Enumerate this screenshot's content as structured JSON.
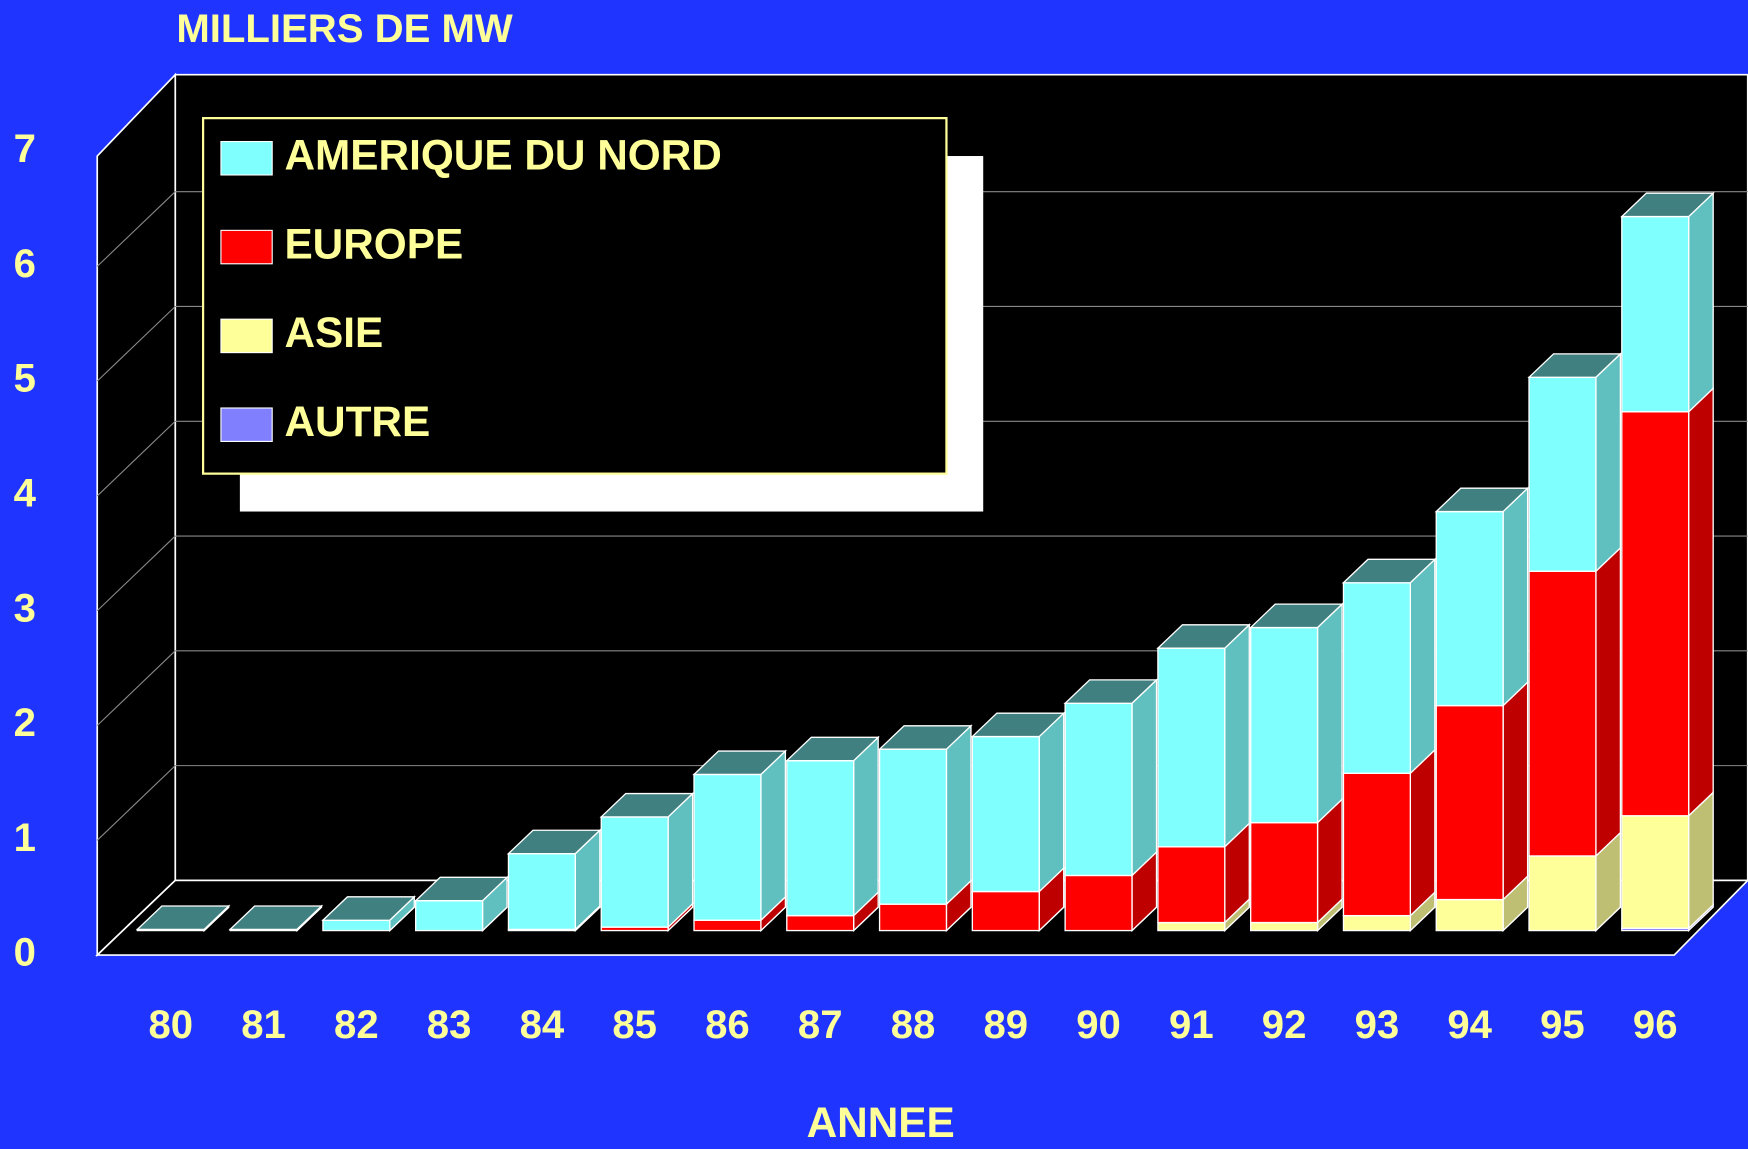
{
  "chart_data": {
    "type": "bar",
    "stacked": true,
    "three_d": true,
    "title": "MILLIERS DE MW",
    "x_label": "ANNEE",
    "categories": [
      "80",
      "81",
      "82",
      "83",
      "84",
      "85",
      "86",
      "87",
      "88",
      "89",
      "90",
      "91",
      "92",
      "93",
      "94",
      "95",
      "96"
    ],
    "series": [
      {
        "name": "AUTRE",
        "color": "#8080ff",
        "values": [
          0,
          0,
          0,
          0,
          0,
          0,
          0,
          0,
          0,
          0,
          0,
          0,
          0,
          0,
          0,
          0,
          0.02
        ]
      },
      {
        "name": "ASIE",
        "color": "#ffff99",
        "values": [
          0,
          0,
          0,
          0,
          0,
          0,
          0,
          0,
          0,
          0,
          0,
          0.07,
          0.07,
          0.13,
          0.27,
          0.65,
          0.98
        ]
      },
      {
        "name": "EUROPE",
        "color": "#ff0000",
        "values": [
          0,
          0,
          0,
          0,
          0.01,
          0.03,
          0.09,
          0.13,
          0.23,
          0.34,
          0.48,
          0.66,
          0.87,
          1.24,
          1.69,
          2.48,
          3.52
        ]
      },
      {
        "name": "AMERIQUE DU NORD",
        "color": "#80ffff",
        "values": [
          0.01,
          0.01,
          0.09,
          0.26,
          0.66,
          0.96,
          1.27,
          1.35,
          1.35,
          1.35,
          1.5,
          1.73,
          1.7,
          1.66,
          1.69,
          1.69,
          1.7
        ]
      }
    ],
    "ylim": [
      0,
      7
    ],
    "yticks": [
      0,
      1,
      2,
      3,
      4,
      5,
      6,
      7
    ],
    "grid": true,
    "legend": "top-left"
  }
}
